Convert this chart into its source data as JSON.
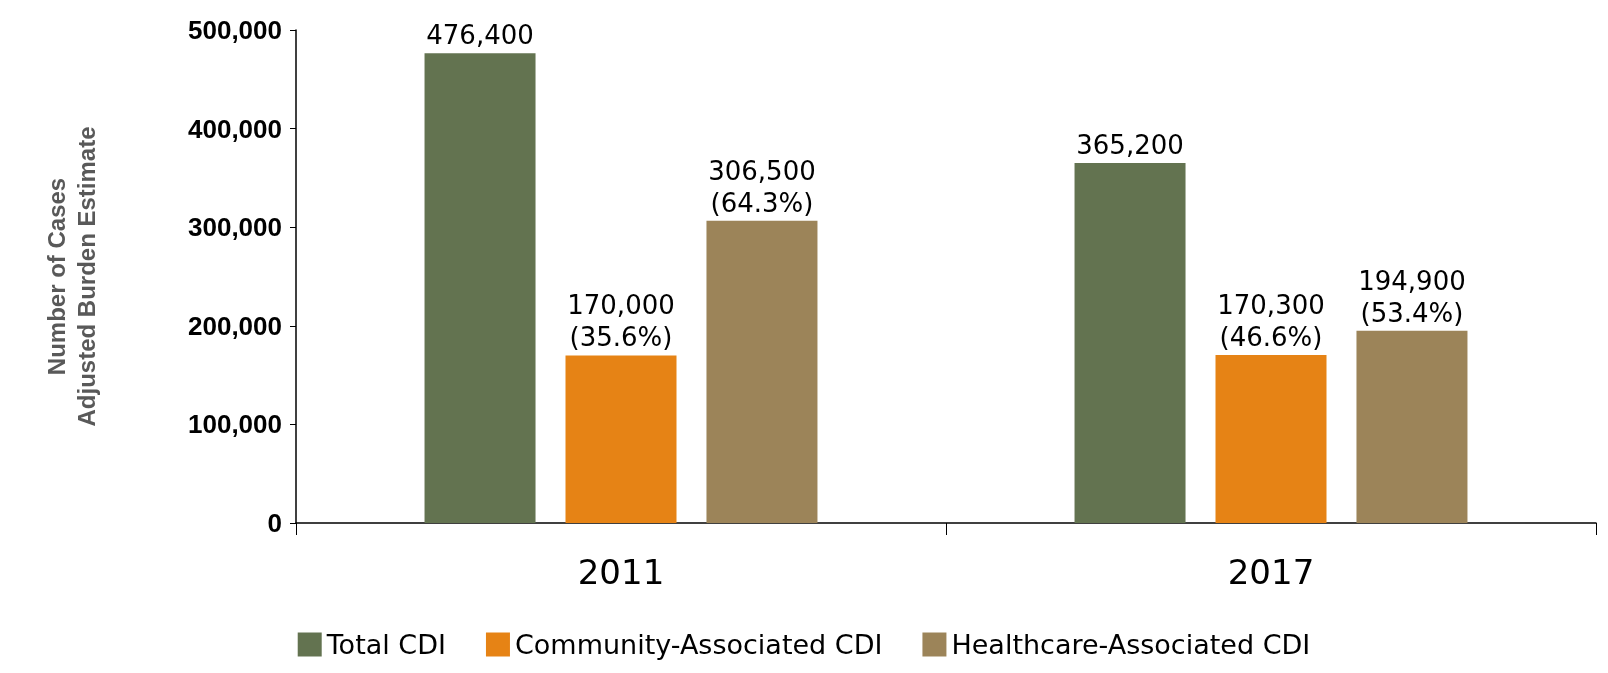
{
  "chart_data": {
    "type": "bar",
    "ylabel": "Number of Cases\nAdjusted Burden Estimate",
    "categories": [
      "2011",
      "2017"
    ],
    "series": [
      {
        "name": "Total CDI",
        "color": "#637350",
        "values": [
          476400,
          365200
        ],
        "value_labels": [
          "476,400",
          "365,200"
        ]
      },
      {
        "name": "Community-Associated CDI",
        "color": "#e68315",
        "values": [
          170000,
          170300
        ],
        "value_labels": [
          "170,000 (35.6%)",
          "170,300 (46.6%)"
        ]
      },
      {
        "name": "Healthcare-Associated CDI",
        "color": "#9c8459",
        "values": [
          306500,
          194900
        ],
        "value_labels": [
          "306,500 (64.3%)",
          "194,900 (53.4%)"
        ]
      }
    ],
    "ylim": [
      0,
      500000
    ],
    "yticks": [
      0,
      {
        "value": 100000,
        "label": "100,000"
      },
      {
        "value": 200000,
        "label": "200,000"
      },
      {
        "value": 300000,
        "label": "300,000"
      },
      {
        "value": 400000,
        "label": "400,000"
      },
      {
        "value": 500000,
        "label": "500,000"
      }
    ],
    "grid": false,
    "legend": "bottom"
  }
}
